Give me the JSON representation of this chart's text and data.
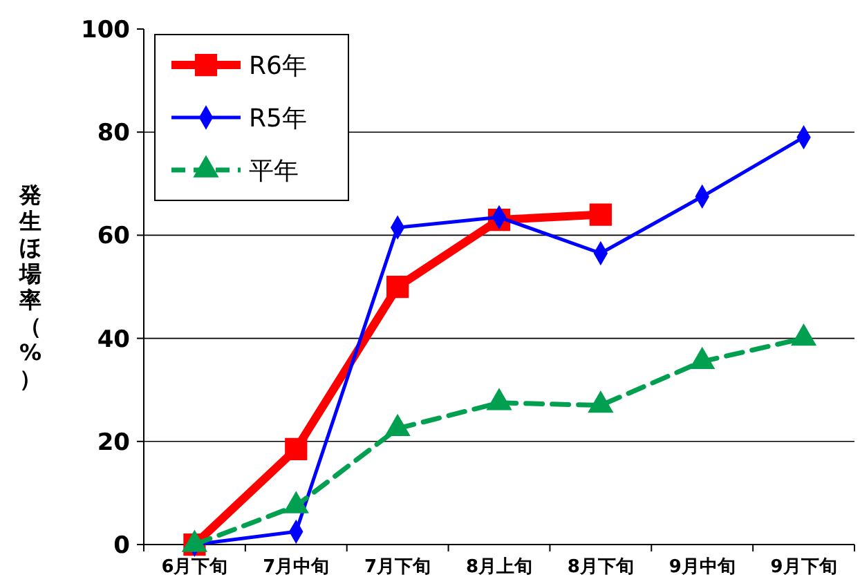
{
  "chart_data": {
    "type": "line",
    "ylabel": "発生ほ場率（%）",
    "categories": [
      "6月下旬",
      "7月中旬",
      "7月下旬",
      "8月上旬",
      "8月下旬",
      "9月中旬",
      "9月下旬"
    ],
    "ylim": [
      0,
      100
    ],
    "yticks": [
      0,
      20,
      40,
      60,
      80,
      100
    ],
    "grid": "y",
    "legend": "top left",
    "series": [
      {
        "name": "R6年",
        "color": "#ff0000",
        "marker": "square",
        "line_style": "solid",
        "values": [
          0,
          18.5,
          50,
          63,
          64,
          null,
          null
        ]
      },
      {
        "name": "R5年",
        "color": "#0000ff",
        "marker": "diamond",
        "line_style": "solid",
        "values": [
          0,
          2.5,
          61.5,
          63.5,
          56.5,
          67.5,
          79
        ]
      },
      {
        "name": "平年",
        "color": "#00a050",
        "marker": "triangle",
        "line_style": "dashed",
        "values": [
          0,
          7.5,
          22.5,
          27.5,
          27,
          35.5,
          40
        ]
      }
    ]
  }
}
